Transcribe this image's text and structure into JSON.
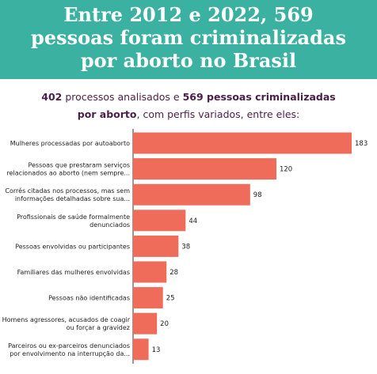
{
  "header": {
    "title_lines": [
      "Entre 2012 e 2022, 569",
      "pessoas foram criminalizadas",
      "por aborto no Brasil"
    ]
  },
  "subtitle": {
    "n_processos": "402",
    "text1": " processos analisados e ",
    "n_pessoas_text": "569 pessoas criminalizadas",
    "line2_bold": "por aborto",
    "line2_rest": ", com perfis variados, entre eles:"
  },
  "colors": {
    "header_bg": "#3bb1a2",
    "bar": "#ef6b5a",
    "subtitle_text": "#4a1f47"
  },
  "chart_data": {
    "type": "bar",
    "orientation": "horizontal",
    "title": "",
    "xlabel": "",
    "ylabel": "",
    "categories": [
      [
        "Mulheres processadas por autoaborto"
      ],
      [
        "Pessoas que prestaram serviços",
        "relacionados ao aborto (nem sempre..."
      ],
      [
        "Corrés citadas nos processos, mas sem",
        "informações detalhadas sobre sua..."
      ],
      [
        "Profissionais de saúde formalmente",
        "denunciados"
      ],
      [
        "Pessoas envolvidas ou participantes"
      ],
      [
        "Familiares das mulheres envolvidas"
      ],
      [
        "Pessoas não identificadas"
      ],
      [
        "Homens agressores, acusados de coagir",
        "ou forçar a gravidez"
      ],
      [
        "Parceiros ou ex-parceiros denunciados",
        "por envolvimento na interrupção da..."
      ]
    ],
    "values": [
      183,
      120,
      98,
      44,
      38,
      28,
      25,
      20,
      13
    ],
    "xlim": [
      0,
      183
    ],
    "grid": false,
    "legend": "none"
  }
}
